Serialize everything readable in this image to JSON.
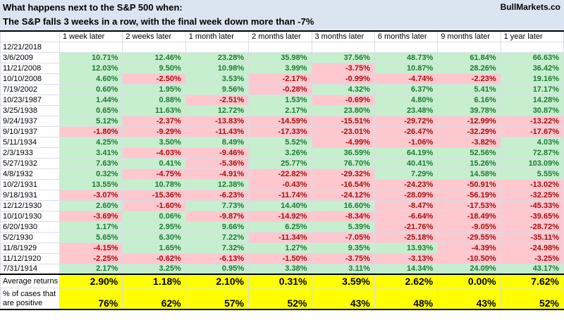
{
  "header": {
    "title_line1": "What happens next to the S&P 500 when:",
    "title_line2": "The S&P falls 3 weeks in a row, with the final week down more than -7%",
    "brand": "BullMarkets.co"
  },
  "chart_data": {
    "type": "table",
    "title": "What happens next to the S&P 500 when: The S&P falls 3 weeks in a row, with the final week down more than -7%",
    "columns": [
      "1 week later",
      "2 weeks later",
      "1 month later",
      "2 months later",
      "3 months later",
      "6 months later",
      "9 months later",
      "1 year later"
    ],
    "rows": [
      {
        "date": "12/21/2018",
        "values": [
          "",
          "",
          "",
          "",
          "",
          "",
          "",
          ""
        ]
      },
      {
        "date": "3/6/2009",
        "values": [
          "10.71%",
          "12.46%",
          "23.28%",
          "35.98%",
          "37.56%",
          "48.73%",
          "61.84%",
          "66.63%"
        ]
      },
      {
        "date": "11/21/2008",
        "values": [
          "12.03%",
          "9.50%",
          "10.98%",
          "3.99%",
          "-3.75%",
          "10.87%",
          "28.26%",
          "36.42%"
        ]
      },
      {
        "date": "10/10/2008",
        "values": [
          "4.60%",
          "-2.50%",
          "3.53%",
          "-2.17%",
          "-0.99%",
          "-4.74%",
          "-2.23%",
          "19.16%"
        ]
      },
      {
        "date": "7/19/2002",
        "values": [
          "0.60%",
          "1.95%",
          "9.56%",
          "-0.28%",
          "4.32%",
          "6.37%",
          "5.41%",
          "17.17%"
        ]
      },
      {
        "date": "10/23/1987",
        "values": [
          "1.44%",
          "0.88%",
          "-2.51%",
          "1.53%",
          "-0.69%",
          "4.80%",
          "6.16%",
          "14.28%"
        ]
      },
      {
        "date": "3/25/1938",
        "values": [
          "0.65%",
          "11.63%",
          "12.72%",
          "2.17%",
          "23.80%",
          "23.48%",
          "39.78%",
          "30.87%"
        ]
      },
      {
        "date": "9/24/1937",
        "values": [
          "5.12%",
          "-2.37%",
          "-13.83%",
          "-14.59%",
          "-15.51%",
          "-29.72%",
          "-12.99%",
          "-13.22%"
        ]
      },
      {
        "date": "9/10/1937",
        "values": [
          "-1.80%",
          "-9.29%",
          "-11.43%",
          "-17.33%",
          "-23.01%",
          "-26.47%",
          "-32.29%",
          "-17.67%"
        ]
      },
      {
        "date": "5/11/1934",
        "values": [
          "4.25%",
          "3.50%",
          "8.49%",
          "5.52%",
          "-4.99%",
          "-1.06%",
          "-3.82%",
          "4.03%"
        ]
      },
      {
        "date": "2/3/1933",
        "values": [
          "3.41%",
          "-4.03%",
          "-9.46%",
          "3.26%",
          "36.59%",
          "64.19%",
          "52.56%",
          "72.87%"
        ]
      },
      {
        "date": "5/27/1932",
        "values": [
          "7.63%",
          "0.41%",
          "-5.36%",
          "25.77%",
          "76.70%",
          "40.41%",
          "15.26%",
          "103.09%"
        ]
      },
      {
        "date": "4/8/1932",
        "values": [
          "0.32%",
          "-4.75%",
          "-4.91%",
          "-22.82%",
          "-29.32%",
          "7.29%",
          "14.58%",
          "5.55%"
        ]
      },
      {
        "date": "10/2/1931",
        "values": [
          "13.55%",
          "10.78%",
          "12.38%",
          "-0.43%",
          "-16.54%",
          "-24.23%",
          "-50.91%",
          "-13.02%"
        ]
      },
      {
        "date": "9/18/1931",
        "values": [
          "-3.07%",
          "-15.36%",
          "-6.23%",
          "-11.74%",
          "-24.12%",
          "-28.09%",
          "-56.19%",
          "-32.25%"
        ]
      },
      {
        "date": "12/12/1930",
        "values": [
          "2.60%",
          "-1.60%",
          "7.73%",
          "14.40%",
          "16.60%",
          "-8.47%",
          "-17.53%",
          "-45.33%"
        ]
      },
      {
        "date": "10/10/1930",
        "values": [
          "-3.69%",
          "0.06%",
          "-9.87%",
          "-14.92%",
          "-8.34%",
          "-6.64%",
          "-18.49%",
          "-39.65%"
        ]
      },
      {
        "date": "6/20/1930",
        "values": [
          "1.17%",
          "2.95%",
          "9.66%",
          "6.25%",
          "5.39%",
          "-21.76%",
          "-9.05%",
          "-28.72%"
        ]
      },
      {
        "date": "5/2/1930",
        "values": [
          "5.65%",
          "6.30%",
          "7.22%",
          "-11.34%",
          "-7.05%",
          "-25.18%",
          "-29.55%",
          "-35.11%"
        ]
      },
      {
        "date": "11/8/1929",
        "values": [
          "-4.15%",
          "1.65%",
          "7.32%",
          "1.27%",
          "9.35%",
          "13.93%",
          "-4.39%",
          "-24.98%"
        ]
      },
      {
        "date": "11/12/1920",
        "values": [
          "-2.25%",
          "-0.62%",
          "-6.13%",
          "-1.50%",
          "-3.75%",
          "-3.13%",
          "-10.50%",
          "-3.25%"
        ]
      },
      {
        "date": "7/31/1914",
        "values": [
          "2.17%",
          "3.25%",
          "0.95%",
          "3.38%",
          "3.11%",
          "14.34%",
          "24.09%",
          "43.17%"
        ]
      }
    ],
    "summary_rows": [
      {
        "id": "avg-row",
        "label": "Average returns",
        "values": [
          "2.90%",
          "1.18%",
          "2.10%",
          "0.31%",
          "3.59%",
          "2.62%",
          "0.00%",
          "7.62%"
        ]
      },
      {
        "id": "pos-row",
        "label": "% of cases that are positive",
        "values": [
          "76%",
          "62%",
          "57%",
          "52%",
          "43%",
          "48%",
          "43%",
          "52%"
        ]
      }
    ]
  },
  "colors": {
    "positive_bg": "#c6efce",
    "positive_text": "#1e7b34",
    "negative_bg": "#ffc7ce",
    "negative_text": "#a50e0e",
    "summary_bg": "#ffff00",
    "title_band_bg": "#dbe5f1",
    "gridline": "#d8dde6"
  }
}
